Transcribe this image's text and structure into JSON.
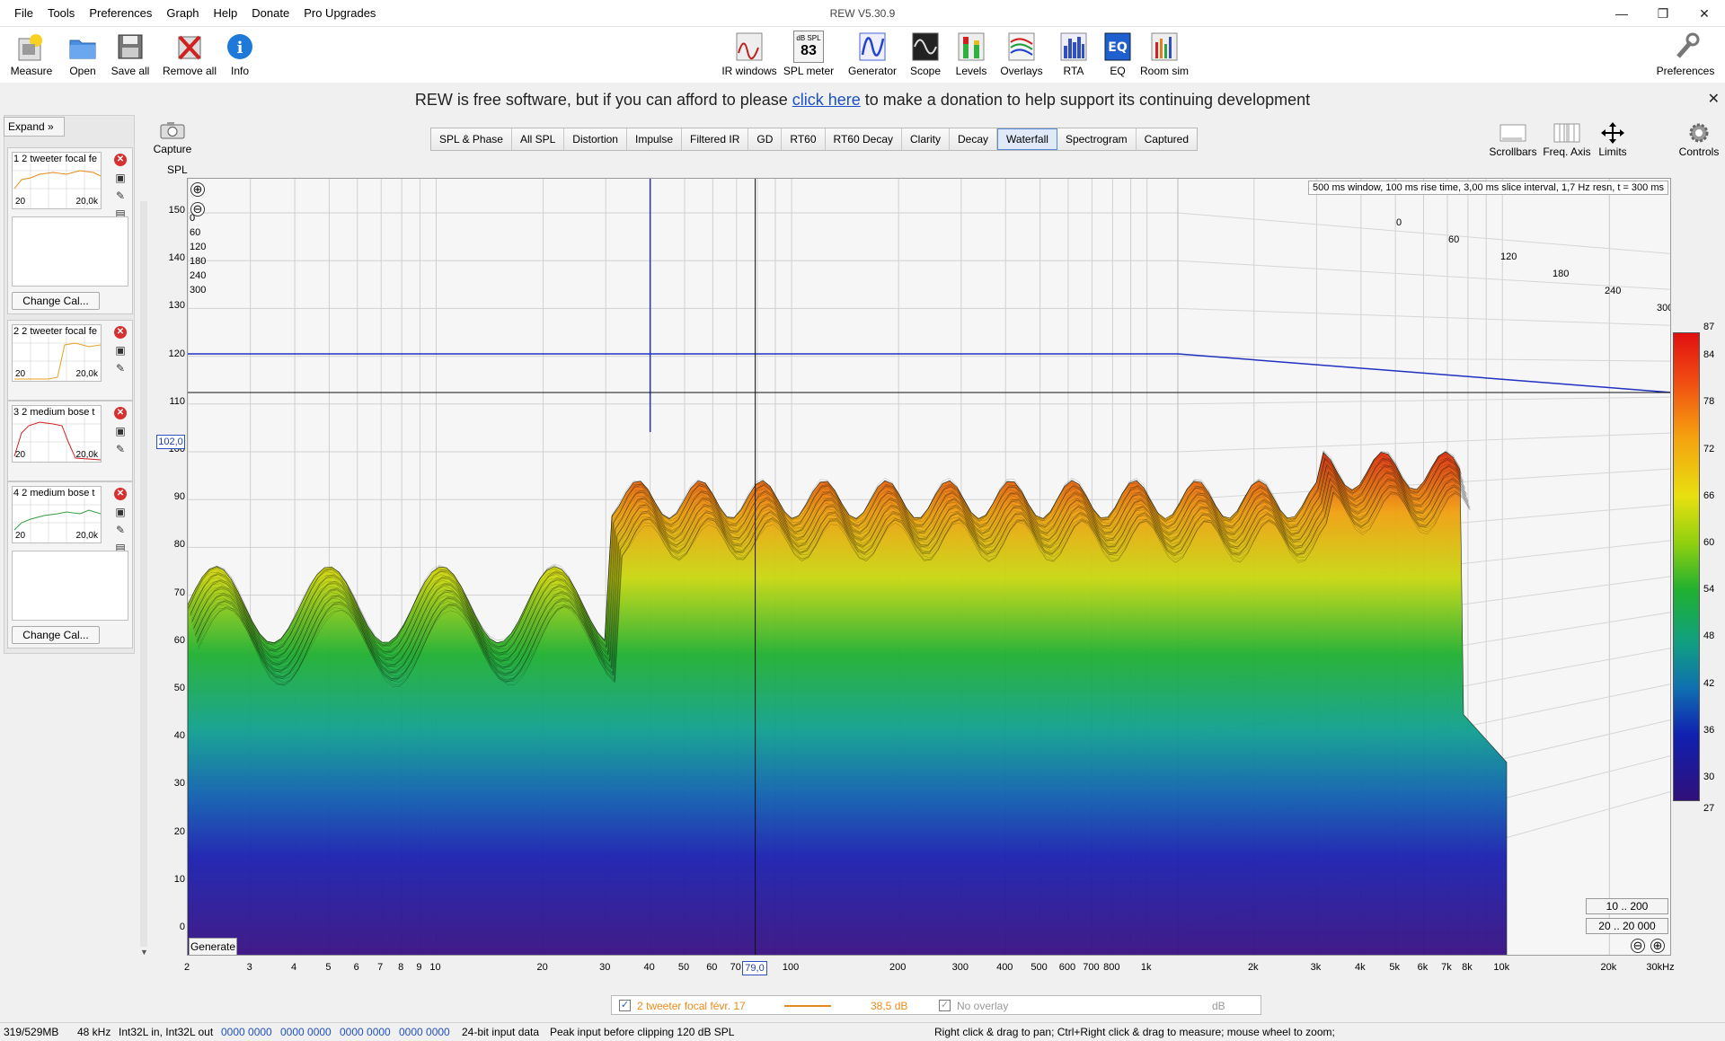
{
  "window": {
    "title": "REW V5.30.9",
    "controls": [
      "—",
      "❐",
      "✕"
    ]
  },
  "menu": [
    "File",
    "Tools",
    "Preferences",
    "Graph",
    "Help",
    "Donate",
    "Pro Upgrades"
  ],
  "toolbar_left": [
    {
      "label": "Measure",
      "icon": "measure-icon"
    },
    {
      "label": "Open",
      "icon": "folder-icon"
    },
    {
      "label": "Save all",
      "icon": "save-icon"
    },
    {
      "label": "Remove all",
      "icon": "remove-icon"
    },
    {
      "label": "Info",
      "icon": "info-icon"
    }
  ],
  "toolbar_center": [
    {
      "label": "IR windows",
      "icon": "ir-windows-icon"
    },
    {
      "label": "SPL meter",
      "icon": "spl-meter-icon",
      "badge_top": "dB SPL",
      "badge_value": "83"
    },
    {
      "label": "Generator",
      "icon": "generator-icon"
    },
    {
      "label": "Scope",
      "icon": "scope-icon"
    },
    {
      "label": "Levels",
      "icon": "levels-icon"
    },
    {
      "label": "Overlays",
      "icon": "overlays-icon"
    },
    {
      "label": "RTA",
      "icon": "rta-icon"
    },
    {
      "label": "EQ",
      "icon": "eq-icon"
    },
    {
      "label": "Room sim",
      "icon": "room-sim-icon"
    }
  ],
  "toolbar_right": {
    "label": "Preferences",
    "icon": "wrench-icon"
  },
  "banner": {
    "before": "REW is free software, but if you can afford to please ",
    "link": "click here",
    "after": " to make a donation to help support its continuing development",
    "close": "✕"
  },
  "left_panel": {
    "expand": "Expand",
    "expand_icon": "»",
    "measurements": [
      {
        "name": "1 2 tweeter focal fe",
        "x_min": "20",
        "x_max": "20,0k",
        "color": "#e88a1a"
      },
      {
        "name": "2 2 tweeter focal fe",
        "x_min": "20",
        "x_max": "20,0k",
        "color": "#e8a020"
      },
      {
        "name": "3 2 medium bose t",
        "x_min": "20",
        "x_max": "20,0k",
        "color": "#d02020"
      },
      {
        "name": "4 2 medium bose t",
        "x_min": "20",
        "x_max": "20,0k",
        "color": "#30a040"
      }
    ],
    "change_cal": "Change Cal..."
  },
  "capture": {
    "label": "Capture",
    "icon": "camera-icon"
  },
  "y_axis_label": "SPL",
  "tabs": [
    {
      "label": "SPL & Phase",
      "active": false
    },
    {
      "label": "All SPL",
      "active": false
    },
    {
      "label": "Distortion",
      "active": false
    },
    {
      "label": "Impulse",
      "active": false
    },
    {
      "label": "Filtered IR",
      "active": false
    },
    {
      "label": "GD",
      "active": false
    },
    {
      "label": "RT60",
      "active": false
    },
    {
      "label": "RT60 Decay",
      "active": false
    },
    {
      "label": "Clarity",
      "active": false
    },
    {
      "label": "Decay",
      "active": false
    },
    {
      "label": "Waterfall",
      "active": true
    },
    {
      "label": "Spectrogram",
      "active": false
    },
    {
      "label": "Captured",
      "active": false
    }
  ],
  "right_controls": [
    {
      "label": "Scrollbars",
      "icon": "scrollbars-icon"
    },
    {
      "label": "Freq. Axis",
      "icon": "freq-axis-icon"
    },
    {
      "label": "Limits",
      "icon": "limits-icon"
    },
    {
      "label": "Controls",
      "icon": "gear-icon"
    }
  ],
  "graph": {
    "info": "500 ms window, 100 ms rise time, 3,00 ms slice interval, 1,7 Hz resn, t = 300 ms",
    "y_ticks": [
      "150",
      "140",
      "130",
      "120",
      "110",
      "100",
      "90",
      "80",
      "70",
      "60",
      "50",
      "40",
      "30",
      "20",
      "10",
      "0"
    ],
    "x_ticks": [
      "2",
      "3",
      "4",
      "5",
      "6",
      "7",
      "8",
      "9",
      "10",
      "20",
      "30",
      "40",
      "50",
      "60",
      "70",
      "100",
      "200",
      "300",
      "400",
      "500",
      "600",
      "700",
      "800",
      "1k",
      "2k",
      "3k",
      "4k",
      "5k",
      "6k",
      "7k",
      "8k",
      "10k",
      "20k",
      "30kHz"
    ],
    "time_ticks_left": [
      "0",
      "60",
      "120",
      "180",
      "240",
      "300"
    ],
    "time_ticks_right": [
      "0",
      "60",
      "120",
      "180",
      "240",
      "300"
    ],
    "cursor_y": "102,0",
    "cursor_x": "79,0",
    "generate": "Generate",
    "range_buttons": [
      "10 .. 200",
      "20 .. 20 000"
    ],
    "zoom_out": "⊖",
    "zoom_in": "⊕"
  },
  "color_scale": {
    "max": "87",
    "min": "27",
    "ticks": [
      "84",
      "78",
      "72",
      "66",
      "60",
      "54",
      "48",
      "42",
      "36",
      "30"
    ]
  },
  "legend": {
    "trace_name": "2 tweeter focal févr. 17",
    "trace_color": "#e88a1a",
    "trace_value": "38,5 dB",
    "overlay": "No overlay",
    "overlay_unit": "dB"
  },
  "status": {
    "memory": "319/529MB",
    "rate": "48 kHz",
    "io": "Int32L in, Int32L out",
    "levels": [
      "0000 0000",
      "0000 0000",
      "0000 0000",
      "0000 0000"
    ],
    "bits": "24-bit input data",
    "peak": "Peak input before clipping 120 dB SPL",
    "hint": "Right click & drag to pan; Ctrl+Right click & drag to measure; mouse wheel to zoom;"
  }
}
